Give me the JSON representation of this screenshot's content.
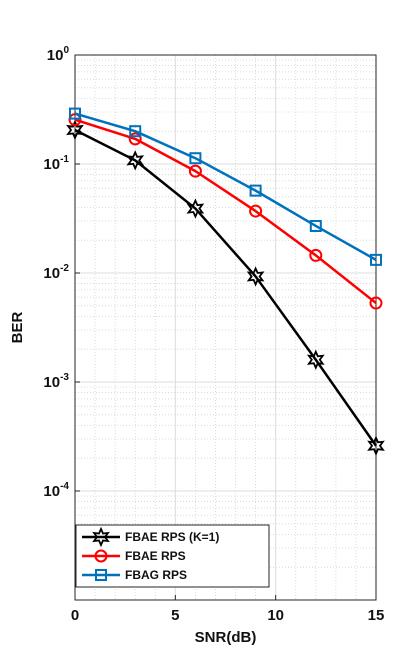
{
  "chart_data": {
    "type": "line",
    "xlabel": "SNR(dB)",
    "ylabel": "BER",
    "xlim": [
      0,
      15
    ],
    "ylim": [
      1e-05,
      1
    ],
    "yscale": "log",
    "grid": true,
    "minor_grid": true,
    "legend_position": "bottom-left",
    "x_ticks": [
      {
        "value": 0,
        "label": "0"
      },
      {
        "value": 5,
        "label": "5"
      },
      {
        "value": 10,
        "label": "10"
      },
      {
        "value": 15,
        "label": "15"
      }
    ],
    "y_ticks": [
      {
        "value": 0.0001,
        "base": "10",
        "exp": "-4"
      },
      {
        "value": 0.001,
        "base": "10",
        "exp": "-3"
      },
      {
        "value": 0.01,
        "base": "10",
        "exp": "-2"
      },
      {
        "value": 0.1,
        "base": "10",
        "exp": "-1"
      },
      {
        "value": 1,
        "base": "10",
        "exp": "0"
      }
    ],
    "series": [
      {
        "name": "FBAE RPS (K=1)",
        "color": "#000000",
        "marker": "hexagram",
        "x": [
          0,
          3,
          6,
          9,
          12,
          15
        ],
        "y": [
          0.205,
          0.108,
          0.039,
          0.0093,
          0.0016,
          0.00026
        ]
      },
      {
        "name": "FBAE RPS",
        "color": "#ff0000",
        "marker": "circle",
        "x": [
          0,
          3,
          6,
          9,
          12,
          15
        ],
        "y": [
          0.255,
          0.17,
          0.086,
          0.037,
          0.0145,
          0.0053
        ]
      },
      {
        "name": "FBAG RPS",
        "color": "#0072bd",
        "marker": "square",
        "x": [
          0,
          3,
          6,
          9,
          12,
          15
        ],
        "y": [
          0.29,
          0.2,
          0.113,
          0.057,
          0.027,
          0.0132
        ]
      }
    ]
  }
}
